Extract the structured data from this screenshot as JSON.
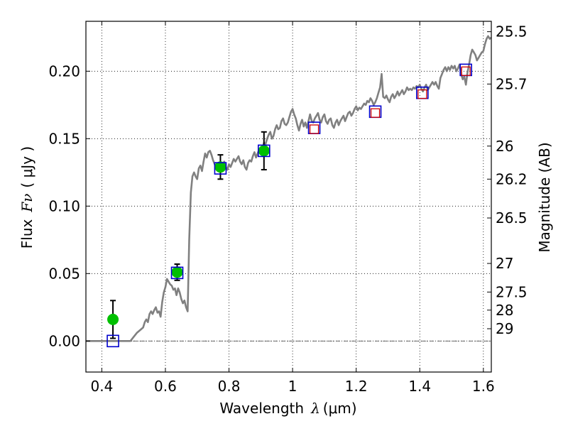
{
  "chart_data": {
    "type": "scatter",
    "xlabel_text": "Wavelength",
    "xlabel_symbol": "λ",
    "xlabel_unit": "(μm)",
    "ylabel_text": "Flux",
    "ylabel_symbol": "Fν",
    "ylabel_unit": "( μJy )",
    "y2label": "Magnitude (AB)",
    "xlim": [
      0.35,
      1.625
    ],
    "ylim": [
      -0.023,
      0.237
    ],
    "x_ticks": [
      0.4,
      0.6,
      0.8,
      1.0,
      1.2,
      1.4,
      1.6
    ],
    "x_tick_labels": [
      "0.4",
      "0.6",
      "0.8",
      "1",
      "1.2",
      "1.4",
      "1.6"
    ],
    "y_ticks": [
      0.0,
      0.05,
      0.1,
      0.15,
      0.2
    ],
    "y_tick_labels": [
      "0.00",
      "0.05",
      "0.10",
      "0.15",
      "0.20"
    ],
    "y2_ticks": [
      {
        "flux": 0.2293,
        "label": "25.5"
      },
      {
        "flux": 0.1905,
        "label": "25.7"
      },
      {
        "flux": 0.1445,
        "label": "26"
      },
      {
        "flux": 0.12,
        "label": "26.2"
      },
      {
        "flux": 0.0912,
        "label": "26.5"
      },
      {
        "flux": 0.0575,
        "label": "27"
      },
      {
        "flux": 0.0363,
        "label": "27.5"
      },
      {
        "flux": 0.0229,
        "label": "28"
      },
      {
        "flux": 0.0091,
        "label": "29"
      }
    ],
    "grid": true,
    "zero_line": true,
    "series": [
      {
        "kind": "model_spectrum",
        "color": "#808080",
        "points": [
          [
            0.35,
            0.0
          ],
          [
            0.4,
            0.0
          ],
          [
            0.44,
            0.0
          ],
          [
            0.49,
            0.0
          ],
          [
            0.5,
            0.003
          ],
          [
            0.51,
            0.006
          ],
          [
            0.52,
            0.008
          ],
          [
            0.53,
            0.01
          ],
          [
            0.535,
            0.014
          ],
          [
            0.54,
            0.016
          ],
          [
            0.545,
            0.014
          ],
          [
            0.55,
            0.02
          ],
          [
            0.555,
            0.022
          ],
          [
            0.56,
            0.02
          ],
          [
            0.565,
            0.023
          ],
          [
            0.57,
            0.025
          ],
          [
            0.575,
            0.021
          ],
          [
            0.58,
            0.022
          ],
          [
            0.585,
            0.018
          ],
          [
            0.59,
            0.029
          ],
          [
            0.595,
            0.036
          ],
          [
            0.6,
            0.04
          ],
          [
            0.605,
            0.046
          ],
          [
            0.61,
            0.044
          ],
          [
            0.615,
            0.042
          ],
          [
            0.62,
            0.041
          ],
          [
            0.625,
            0.038
          ],
          [
            0.63,
            0.039
          ],
          [
            0.635,
            0.034
          ],
          [
            0.64,
            0.039
          ],
          [
            0.645,
            0.036
          ],
          [
            0.65,
            0.031
          ],
          [
            0.655,
            0.028
          ],
          [
            0.66,
            0.03
          ],
          [
            0.665,
            0.025
          ],
          [
            0.67,
            0.022
          ],
          [
            0.675,
            0.075
          ],
          [
            0.68,
            0.11
          ],
          [
            0.685,
            0.122
          ],
          [
            0.69,
            0.125
          ],
          [
            0.695,
            0.122
          ],
          [
            0.7,
            0.12
          ],
          [
            0.705,
            0.128
          ],
          [
            0.71,
            0.13
          ],
          [
            0.715,
            0.126
          ],
          [
            0.72,
            0.133
          ],
          [
            0.725,
            0.139
          ],
          [
            0.73,
            0.136
          ],
          [
            0.735,
            0.14
          ],
          [
            0.74,
            0.141
          ],
          [
            0.745,
            0.138
          ],
          [
            0.75,
            0.134
          ],
          [
            0.755,
            0.131
          ],
          [
            0.76,
            0.128
          ],
          [
            0.765,
            0.129
          ],
          [
            0.77,
            0.131
          ],
          [
            0.775,
            0.13
          ],
          [
            0.78,
            0.131
          ],
          [
            0.785,
            0.133
          ],
          [
            0.79,
            0.129
          ],
          [
            0.795,
            0.127
          ],
          [
            0.8,
            0.131
          ],
          [
            0.805,
            0.129
          ],
          [
            0.81,
            0.132
          ],
          [
            0.815,
            0.135
          ],
          [
            0.82,
            0.133
          ],
          [
            0.825,
            0.135
          ],
          [
            0.83,
            0.137
          ],
          [
            0.835,
            0.133
          ],
          [
            0.84,
            0.131
          ],
          [
            0.845,
            0.134
          ],
          [
            0.85,
            0.129
          ],
          [
            0.855,
            0.127
          ],
          [
            0.86,
            0.132
          ],
          [
            0.865,
            0.134
          ],
          [
            0.87,
            0.133
          ],
          [
            0.875,
            0.137
          ],
          [
            0.88,
            0.14
          ],
          [
            0.885,
            0.136
          ],
          [
            0.89,
            0.139
          ],
          [
            0.895,
            0.142
          ],
          [
            0.9,
            0.14
          ],
          [
            0.905,
            0.143
          ],
          [
            0.91,
            0.147
          ],
          [
            0.915,
            0.146
          ],
          [
            0.92,
            0.15
          ],
          [
            0.925,
            0.153
          ],
          [
            0.93,
            0.155
          ],
          [
            0.935,
            0.15
          ],
          [
            0.94,
            0.152
          ],
          [
            0.945,
            0.157
          ],
          [
            0.95,
            0.16
          ],
          [
            0.955,
            0.157
          ],
          [
            0.96,
            0.158
          ],
          [
            0.965,
            0.163
          ],
          [
            0.97,
            0.165
          ],
          [
            0.975,
            0.161
          ],
          [
            0.98,
            0.16
          ],
          [
            0.985,
            0.162
          ],
          [
            0.99,
            0.166
          ],
          [
            0.995,
            0.17
          ],
          [
            1.0,
            0.172
          ],
          [
            1.005,
            0.168
          ],
          [
            1.01,
            0.165
          ],
          [
            1.015,
            0.16
          ],
          [
            1.02,
            0.156
          ],
          [
            1.025,
            0.161
          ],
          [
            1.03,
            0.164
          ],
          [
            1.035,
            0.159
          ],
          [
            1.04,
            0.162
          ],
          [
            1.045,
            0.158
          ],
          [
            1.05,
            0.163
          ],
          [
            1.055,
            0.168
          ],
          [
            1.06,
            0.163
          ],
          [
            1.065,
            0.162
          ],
          [
            1.07,
            0.165
          ],
          [
            1.075,
            0.167
          ],
          [
            1.08,
            0.169
          ],
          [
            1.085,
            0.164
          ],
          [
            1.09,
            0.162
          ],
          [
            1.095,
            0.166
          ],
          [
            1.1,
            0.168
          ],
          [
            1.105,
            0.163
          ],
          [
            1.11,
            0.161
          ],
          [
            1.115,
            0.164
          ],
          [
            1.12,
            0.165
          ],
          [
            1.125,
            0.16
          ],
          [
            1.13,
            0.158
          ],
          [
            1.135,
            0.162
          ],
          [
            1.14,
            0.164
          ],
          [
            1.145,
            0.16
          ],
          [
            1.15,
            0.163
          ],
          [
            1.155,
            0.165
          ],
          [
            1.16,
            0.167
          ],
          [
            1.165,
            0.163
          ],
          [
            1.17,
            0.166
          ],
          [
            1.175,
            0.169
          ],
          [
            1.18,
            0.17
          ],
          [
            1.185,
            0.167
          ],
          [
            1.19,
            0.169
          ],
          [
            1.195,
            0.172
          ],
          [
            1.2,
            0.174
          ],
          [
            1.205,
            0.171
          ],
          [
            1.21,
            0.173
          ],
          [
            1.215,
            0.172
          ],
          [
            1.22,
            0.174
          ],
          [
            1.225,
            0.176
          ],
          [
            1.23,
            0.175
          ],
          [
            1.235,
            0.178
          ],
          [
            1.24,
            0.177
          ],
          [
            1.245,
            0.18
          ],
          [
            1.25,
            0.178
          ],
          [
            1.255,
            0.175
          ],
          [
            1.26,
            0.177
          ],
          [
            1.265,
            0.18
          ],
          [
            1.27,
            0.184
          ],
          [
            1.275,
            0.188
          ],
          [
            1.28,
            0.198
          ],
          [
            1.285,
            0.181
          ],
          [
            1.29,
            0.18
          ],
          [
            1.295,
            0.182
          ],
          [
            1.3,
            0.179
          ],
          [
            1.305,
            0.177
          ],
          [
            1.31,
            0.181
          ],
          [
            1.315,
            0.183
          ],
          [
            1.32,
            0.18
          ],
          [
            1.325,
            0.182
          ],
          [
            1.33,
            0.185
          ],
          [
            1.335,
            0.182
          ],
          [
            1.34,
            0.184
          ],
          [
            1.345,
            0.186
          ],
          [
            1.35,
            0.183
          ],
          [
            1.355,
            0.185
          ],
          [
            1.36,
            0.188
          ],
          [
            1.365,
            0.186
          ],
          [
            1.37,
            0.187
          ],
          [
            1.375,
            0.186
          ],
          [
            1.38,
            0.188
          ],
          [
            1.385,
            0.187
          ],
          [
            1.39,
            0.189
          ],
          [
            1.395,
            0.188
          ],
          [
            1.4,
            0.19
          ],
          [
            1.405,
            0.187
          ],
          [
            1.41,
            0.185
          ],
          [
            1.415,
            0.188
          ],
          [
            1.42,
            0.19
          ],
          [
            1.425,
            0.186
          ],
          [
            1.43,
            0.188
          ],
          [
            1.435,
            0.19
          ],
          [
            1.44,
            0.192
          ],
          [
            1.445,
            0.19
          ],
          [
            1.45,
            0.192
          ],
          [
            1.455,
            0.189
          ],
          [
            1.46,
            0.187
          ],
          [
            1.465,
            0.195
          ],
          [
            1.47,
            0.198
          ],
          [
            1.475,
            0.201
          ],
          [
            1.48,
            0.203
          ],
          [
            1.485,
            0.2
          ],
          [
            1.49,
            0.203
          ],
          [
            1.495,
            0.201
          ],
          [
            1.5,
            0.204
          ],
          [
            1.505,
            0.202
          ],
          [
            1.51,
            0.204
          ],
          [
            1.515,
            0.2
          ],
          [
            1.52,
            0.202
          ],
          [
            1.525,
            0.205
          ],
          [
            1.53,
            0.198
          ],
          [
            1.535,
            0.194
          ],
          [
            1.54,
            0.196
          ],
          [
            1.545,
            0.19
          ],
          [
            1.55,
            0.199
          ],
          [
            1.555,
            0.205
          ],
          [
            1.56,
            0.212
          ],
          [
            1.565,
            0.216
          ],
          [
            1.57,
            0.214
          ],
          [
            1.575,
            0.212
          ],
          [
            1.58,
            0.208
          ],
          [
            1.585,
            0.21
          ],
          [
            1.59,
            0.212
          ],
          [
            1.595,
            0.214
          ],
          [
            1.6,
            0.215
          ],
          [
            1.605,
            0.22
          ],
          [
            1.61,
            0.224
          ],
          [
            1.615,
            0.226
          ],
          [
            1.62,
            0.224
          ],
          [
            1.625,
            0.225
          ]
        ]
      },
      {
        "kind": "measured_flux",
        "color": "#00c000",
        "points": [
          {
            "x": 0.435,
            "y": 0.016,
            "err": 0.014
          },
          {
            "x": 0.637,
            "y": 0.051,
            "err": 0.006
          },
          {
            "x": 0.773,
            "y": 0.129,
            "err": 0.009
          },
          {
            "x": 0.91,
            "y": 0.141,
            "err": 0.014
          }
        ]
      },
      {
        "kind": "model_band_flux",
        "color": "#0000cc",
        "points": [
          {
            "x": 0.435,
            "y": 0.0
          },
          {
            "x": 0.637,
            "y": 0.0505
          },
          {
            "x": 0.773,
            "y": 0.128
          },
          {
            "x": 0.91,
            "y": 0.141
          },
          {
            "x": 1.068,
            "y": 0.158
          },
          {
            "x": 1.26,
            "y": 0.17
          },
          {
            "x": 1.408,
            "y": 0.184
          },
          {
            "x": 1.545,
            "y": 0.201
          }
        ]
      },
      {
        "kind": "red_squares",
        "color": "#d00000",
        "points": [
          {
            "x": 1.068,
            "y": 0.157
          },
          {
            "x": 1.26,
            "y": 0.169
          },
          {
            "x": 1.408,
            "y": 0.183
          },
          {
            "x": 1.545,
            "y": 0.2
          }
        ]
      }
    ]
  }
}
